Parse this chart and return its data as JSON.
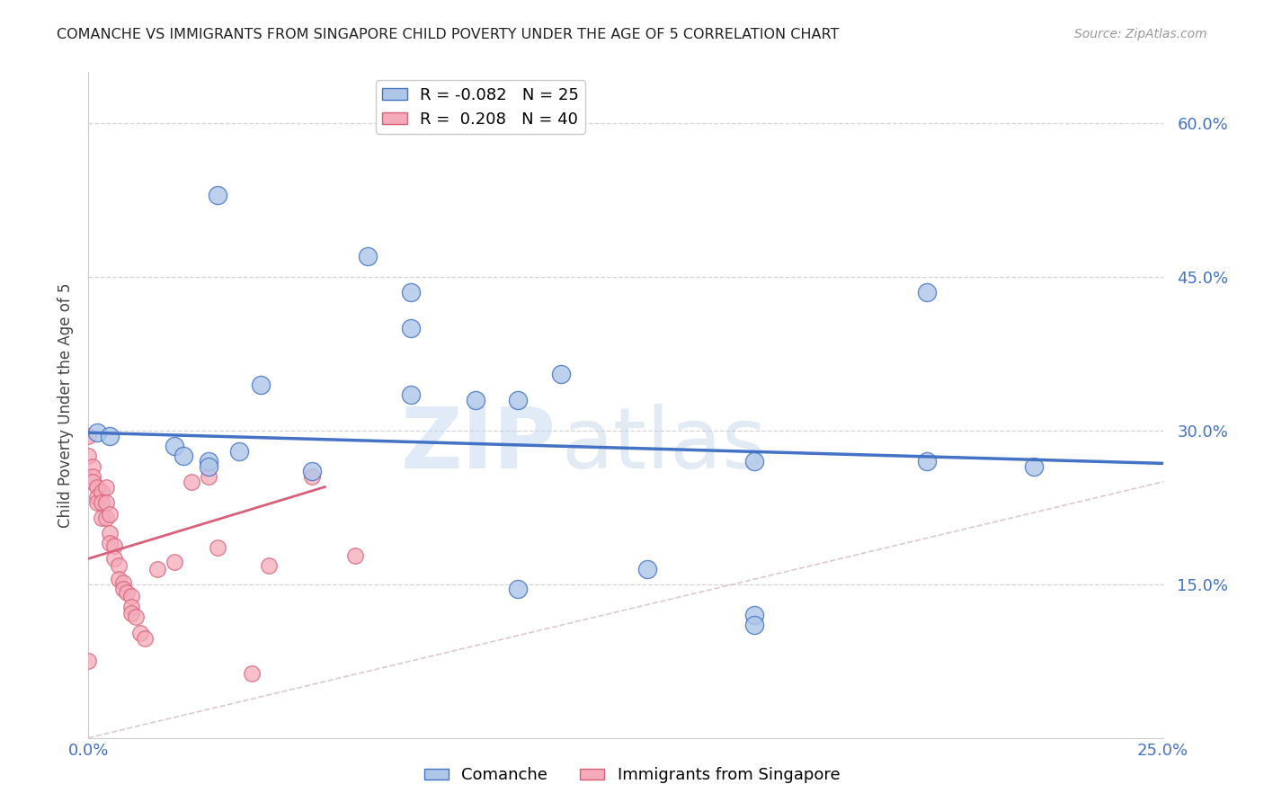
{
  "title": "COMANCHE VS IMMIGRANTS FROM SINGAPORE CHILD POVERTY UNDER THE AGE OF 5 CORRELATION CHART",
  "source": "Source: ZipAtlas.com",
  "ylabel": "Child Poverty Under the Age of 5",
  "xlabel": "",
  "xlim": [
    0.0,
    0.25
  ],
  "ylim": [
    0.0,
    0.65
  ],
  "yticks": [
    0.0,
    0.15,
    0.3,
    0.45,
    0.6
  ],
  "ytick_labels": [
    "",
    "15.0%",
    "30.0%",
    "45.0%",
    "60.0%"
  ],
  "xticks": [
    0.0,
    0.05,
    0.1,
    0.15,
    0.2,
    0.25
  ],
  "xtick_labels": [
    "0.0%",
    "",
    "",
    "",
    "",
    "25.0%"
  ],
  "blue_R": -0.082,
  "blue_N": 25,
  "pink_R": 0.208,
  "pink_N": 40,
  "blue_color": "#aec6e8",
  "pink_color": "#f4aab8",
  "blue_line_color": "#4472c4",
  "pink_line_color": "#d9607a",
  "axis_color": "#4472c4",
  "watermark_zip": "ZIP",
  "watermark_atlas": "atlas",
  "blue_line": [
    [
      0.0,
      0.298
    ],
    [
      0.25,
      0.268
    ]
  ],
  "pink_line": [
    [
      0.0,
      0.175
    ],
    [
      0.055,
      0.245
    ]
  ],
  "diag_line": [
    [
      0.0,
      0.0
    ],
    [
      0.6,
      0.6
    ]
  ],
  "blue_dots": [
    [
      0.03,
      0.53
    ],
    [
      0.065,
      0.47
    ],
    [
      0.075,
      0.435
    ],
    [
      0.075,
      0.4
    ],
    [
      0.04,
      0.345
    ],
    [
      0.075,
      0.335
    ],
    [
      0.09,
      0.33
    ],
    [
      0.1,
      0.33
    ],
    [
      0.11,
      0.355
    ],
    [
      0.002,
      0.298
    ],
    [
      0.005,
      0.295
    ],
    [
      0.02,
      0.285
    ],
    [
      0.022,
      0.275
    ],
    [
      0.028,
      0.27
    ],
    [
      0.028,
      0.265
    ],
    [
      0.035,
      0.28
    ],
    [
      0.052,
      0.26
    ],
    [
      0.155,
      0.27
    ],
    [
      0.13,
      0.165
    ],
    [
      0.1,
      0.145
    ],
    [
      0.155,
      0.12
    ],
    [
      0.155,
      0.11
    ],
    [
      0.195,
      0.435
    ],
    [
      0.195,
      0.27
    ],
    [
      0.22,
      0.265
    ]
  ],
  "pink_dots": [
    [
      0.0,
      0.295
    ],
    [
      0.0,
      0.275
    ],
    [
      0.001,
      0.265
    ],
    [
      0.001,
      0.255
    ],
    [
      0.001,
      0.25
    ],
    [
      0.002,
      0.245
    ],
    [
      0.002,
      0.235
    ],
    [
      0.002,
      0.23
    ],
    [
      0.003,
      0.24
    ],
    [
      0.003,
      0.23
    ],
    [
      0.003,
      0.215
    ],
    [
      0.004,
      0.245
    ],
    [
      0.004,
      0.23
    ],
    [
      0.004,
      0.215
    ],
    [
      0.005,
      0.218
    ],
    [
      0.005,
      0.2
    ],
    [
      0.005,
      0.19
    ],
    [
      0.006,
      0.188
    ],
    [
      0.006,
      0.175
    ],
    [
      0.007,
      0.168
    ],
    [
      0.007,
      0.155
    ],
    [
      0.008,
      0.152
    ],
    [
      0.008,
      0.145
    ],
    [
      0.009,
      0.142
    ],
    [
      0.01,
      0.138
    ],
    [
      0.01,
      0.128
    ],
    [
      0.01,
      0.122
    ],
    [
      0.011,
      0.118
    ],
    [
      0.012,
      0.102
    ],
    [
      0.013,
      0.097
    ],
    [
      0.016,
      0.165
    ],
    [
      0.02,
      0.172
    ],
    [
      0.024,
      0.25
    ],
    [
      0.028,
      0.255
    ],
    [
      0.03,
      0.186
    ],
    [
      0.038,
      0.063
    ],
    [
      0.042,
      0.168
    ],
    [
      0.052,
      0.255
    ],
    [
      0.062,
      0.178
    ],
    [
      0.0,
      0.075
    ]
  ]
}
